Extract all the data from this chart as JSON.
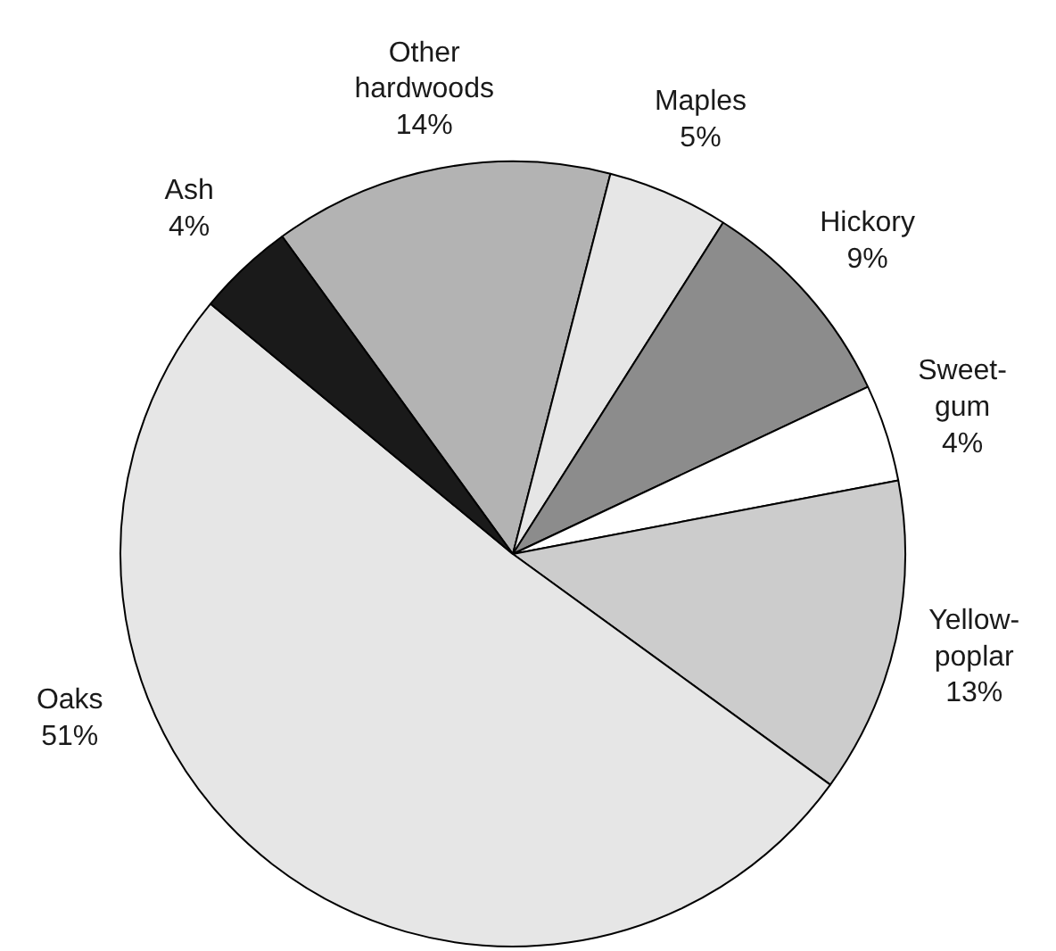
{
  "chart_data": {
    "type": "pie",
    "categories": [
      "Other hardwoods",
      "Maples",
      "Hickory",
      "Sweet-gum",
      "Yellow-poplar",
      "Oaks",
      "Ash"
    ],
    "values": [
      14,
      5,
      9,
      4,
      13,
      51,
      4
    ],
    "colors": [
      "#b3b3b3",
      "#e6e6e6",
      "#8c8c8c",
      "#ffffff",
      "#cccccc",
      "#e6e6e6",
      "#1a1a1a"
    ],
    "value_labels": [
      "14%",
      "5%",
      "9%",
      "4%",
      "13%",
      "51%",
      "4%"
    ]
  }
}
